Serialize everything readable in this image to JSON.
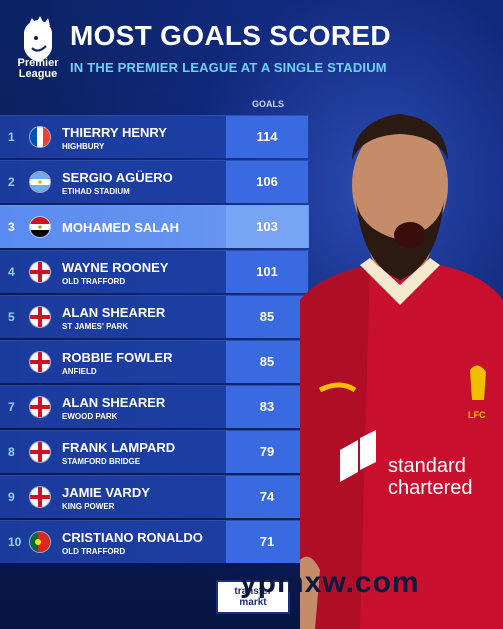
{
  "header": {
    "logo_label": "Premier League",
    "title": "MOST GOALS SCORED",
    "subtitle": "IN THE PREMIER LEAGUE AT A SINGLE STADIUM"
  },
  "table": {
    "column_header": "GOALS",
    "rows": [
      {
        "rank": "1",
        "flag": "france",
        "player": "THIERRY HENRY",
        "stadium": "HIGHBURY",
        "goals": "114",
        "highlight": false
      },
      {
        "rank": "2",
        "flag": "argentina",
        "player": "SERGIO AGÜERO",
        "stadium": "ETIHAD STADIUM",
        "goals": "106",
        "highlight": false
      },
      {
        "rank": "3",
        "flag": "egypt",
        "player": "MOHAMED SALAH",
        "stadium": "",
        "goals": "103",
        "highlight": true
      },
      {
        "rank": "4",
        "flag": "england",
        "player": "WAYNE ROONEY",
        "stadium": "OLD TRAFFORD",
        "goals": "101",
        "highlight": false
      },
      {
        "rank": "5",
        "flag": "england",
        "player": "ALAN SHEARER",
        "stadium": "ST JAMES' PARK",
        "goals": "85",
        "highlight": false
      },
      {
        "rank": "",
        "flag": "england",
        "player": "ROBBIE FOWLER",
        "stadium": "ANFIELD",
        "goals": "85",
        "highlight": false
      },
      {
        "rank": "7",
        "flag": "england",
        "player": "ALAN SHEARER",
        "stadium": "EWOOD PARK",
        "goals": "83",
        "highlight": false
      },
      {
        "rank": "8",
        "flag": "england",
        "player": "FRANK LAMPARD",
        "stadium": "STAMFORD BRIDGE",
        "goals": "79",
        "highlight": false
      },
      {
        "rank": "9",
        "flag": "england",
        "player": "JAMIE VARDY",
        "stadium": "KING POWER",
        "goals": "74",
        "highlight": false
      },
      {
        "rank": "10",
        "flag": "portugal",
        "player": "CRISTIANO RONALDO",
        "stadium": "OLD TRAFFORD",
        "goals": "71",
        "highlight": false
      }
    ]
  },
  "sponsor": {
    "line1": "standard",
    "line2": "chartered",
    "crest": "LFC"
  },
  "watermark": "ypmxw.com",
  "badge": {
    "line1": "transfer",
    "line2": "markt"
  },
  "colors": {
    "accent": "#6fd0f5",
    "row": "#1d40a6",
    "goals_cell": "#3a6ae0",
    "highlight": "#6a98f2",
    "kit_red": "#c8102e"
  }
}
